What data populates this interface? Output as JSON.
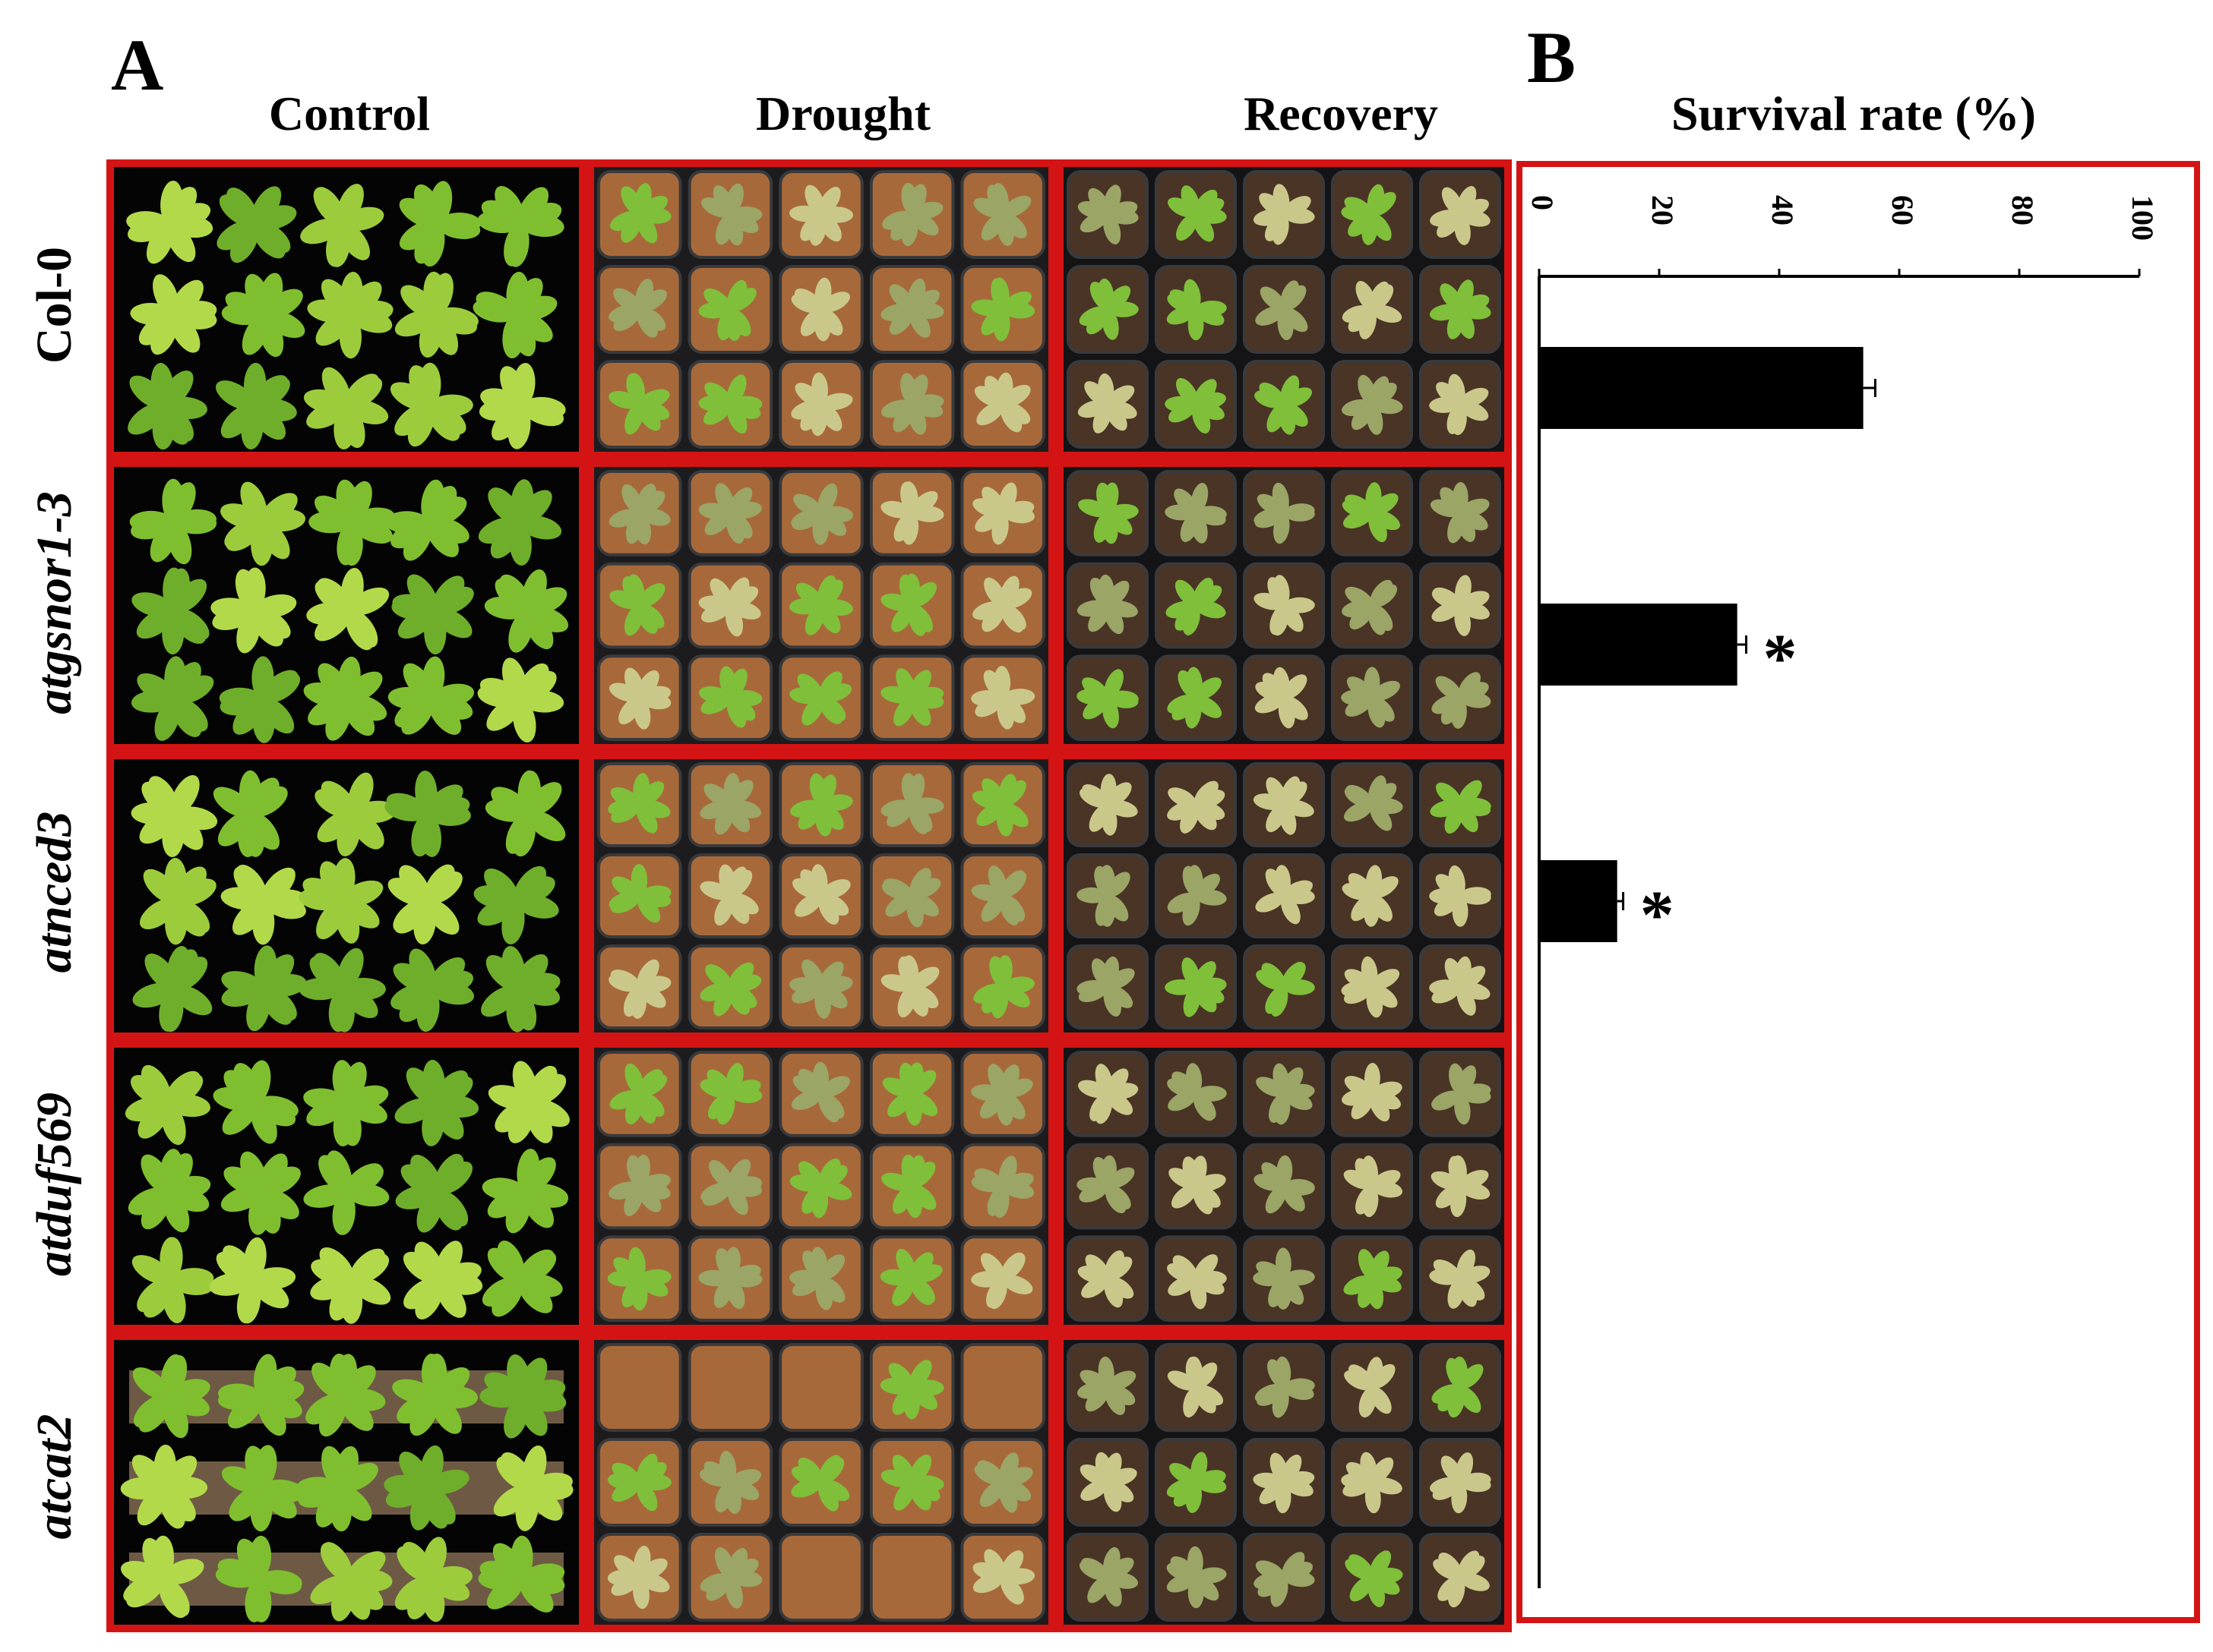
{
  "panel_a": {
    "letter": "A",
    "columns": [
      "Control",
      "Drought",
      "Recovery"
    ],
    "rows": [
      {
        "label": "Col-0",
        "italic": false
      },
      {
        "label": "atgsnor1-3",
        "italic": true
      },
      {
        "label": "atnced3",
        "italic": true
      },
      {
        "label": "atduf569",
        "italic": true
      },
      {
        "label": "atcat2",
        "italic": true
      }
    ]
  },
  "panel_b": {
    "letter": "B",
    "title": "Survival rate (%)"
  },
  "chart_data": {
    "type": "bar",
    "orientation": "horizontal",
    "title": "Survival rate (%)",
    "categories": [
      "Col-0",
      "atgsnor1-3",
      "atnced3",
      "atduf569",
      "atcat2"
    ],
    "values": [
      54,
      33,
      13,
      0,
      0
    ],
    "errors": [
      2,
      1.5,
      1,
      0,
      0
    ],
    "significance": [
      "",
      "*",
      "*",
      "",
      ""
    ],
    "xlim": [
      0,
      100
    ],
    "xticks": [
      "0",
      "20",
      "40",
      "60",
      "80",
      "100"
    ],
    "tick_label_rotation": 90,
    "axis_position": "top",
    "bar_color": "#000000",
    "grid": false,
    "legend": "none"
  },
  "colors": {
    "frame": "#d41414",
    "control_bg": "#040404",
    "plant_green": "#8cc63f",
    "soil": "#8b5a2b",
    "tray": "#1c1c1e"
  }
}
